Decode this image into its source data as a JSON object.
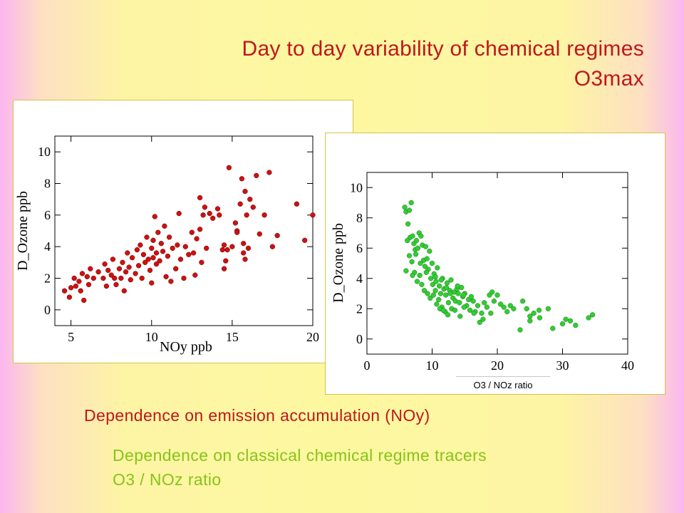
{
  "slide": {
    "title_line1": "Day to day variability of chemical regimes",
    "title_line2": "O3max",
    "caption_red": "Dependence on emission accumulation  (NOy)",
    "caption_green_line1": "Dependence on classical  chemical regime tracers",
    "caption_green_line2": "O3 / NOz ratio",
    "colors": {
      "red_text": "#c0161c",
      "green_text": "#86c41a",
      "red_points": "#d01010",
      "green_points": "#33cc33"
    }
  },
  "chart_data": [
    {
      "type": "scatter",
      "xlabel": "NOy   ppb",
      "ylabel": "D_Ozone  ppb",
      "xlim": [
        4,
        20
      ],
      "ylim": [
        -1,
        11
      ],
      "xticks": [
        5,
        10,
        15,
        20
      ],
      "yticks": [
        0,
        2,
        4,
        6,
        8,
        10
      ],
      "grid": false,
      "marker_color": "#d01010",
      "points": [
        [
          4.6,
          1.2
        ],
        [
          4.9,
          0.8
        ],
        [
          5.0,
          1.4
        ],
        [
          5.2,
          2.0
        ],
        [
          5.3,
          1.5
        ],
        [
          5.5,
          1.8
        ],
        [
          5.6,
          1.2
        ],
        [
          5.7,
          2.3
        ],
        [
          5.8,
          0.6
        ],
        [
          6.0,
          2.1
        ],
        [
          6.1,
          1.6
        ],
        [
          6.2,
          2.6
        ],
        [
          6.4,
          2.0
        ],
        [
          6.7,
          2.4
        ],
        [
          7.0,
          2.0
        ],
        [
          7.1,
          2.9
        ],
        [
          7.2,
          1.5
        ],
        [
          7.3,
          2.5
        ],
        [
          7.5,
          2.2
        ],
        [
          7.6,
          3.2
        ],
        [
          7.7,
          2.0
        ],
        [
          7.8,
          1.6
        ],
        [
          8.0,
          2.6
        ],
        [
          8.1,
          2.0
        ],
        [
          8.2,
          3.0
        ],
        [
          8.3,
          1.2
        ],
        [
          8.4,
          2.4
        ],
        [
          8.5,
          3.6
        ],
        [
          8.6,
          2.7
        ],
        [
          8.7,
          1.9
        ],
        [
          8.8,
          3.3
        ],
        [
          9.0,
          2.3
        ],
        [
          9.1,
          3.8
        ],
        [
          9.2,
          2.8
        ],
        [
          9.3,
          4.1
        ],
        [
          9.4,
          2.0
        ],
        [
          9.5,
          3.5
        ],
        [
          9.6,
          3.0
        ],
        [
          9.7,
          4.6
        ],
        [
          9.8,
          3.2
        ],
        [
          9.9,
          2.5
        ],
        [
          10.0,
          3.9
        ],
        [
          10.0,
          1.7
        ],
        [
          10.1,
          3.3
        ],
        [
          10.1,
          4.4
        ],
        [
          10.2,
          5.9
        ],
        [
          10.3,
          3.6
        ],
        [
          10.3,
          2.9
        ],
        [
          10.4,
          4.9
        ],
        [
          10.5,
          3.1
        ],
        [
          10.6,
          4.2
        ],
        [
          10.7,
          3.7
        ],
        [
          10.8,
          5.3
        ],
        [
          10.9,
          2.1
        ],
        [
          11.0,
          3.4
        ],
        [
          11.1,
          4.6
        ],
        [
          11.2,
          1.8
        ],
        [
          11.3,
          3.9
        ],
        [
          11.5,
          2.6
        ],
        [
          11.6,
          4.1
        ],
        [
          11.7,
          6.1
        ],
        [
          11.8,
          3.2
        ],
        [
          12.0,
          2.0
        ],
        [
          12.1,
          4.0
        ],
        [
          12.3,
          3.5
        ],
        [
          12.5,
          4.9
        ],
        [
          12.6,
          3.6
        ],
        [
          12.7,
          2.2
        ],
        [
          12.8,
          4.5
        ],
        [
          13.0,
          5.1
        ],
        [
          13.0,
          7.1
        ],
        [
          13.1,
          3.0
        ],
        [
          13.2,
          6.0
        ],
        [
          13.3,
          6.5
        ],
        [
          13.4,
          3.9
        ],
        [
          13.6,
          6.1
        ],
        [
          13.8,
          5.8
        ],
        [
          14.1,
          6.4
        ],
        [
          14.2,
          6.0
        ],
        [
          14.4,
          3.8
        ],
        [
          14.5,
          4.1
        ],
        [
          14.5,
          2.6
        ],
        [
          14.6,
          3.1
        ],
        [
          14.7,
          3.8
        ],
        [
          14.8,
          9.0
        ],
        [
          15.0,
          4.0
        ],
        [
          15.2,
          5.5
        ],
        [
          15.3,
          5.0
        ],
        [
          15.3,
          4.9
        ],
        [
          15.5,
          6.7
        ],
        [
          15.6,
          8.3
        ],
        [
          15.7,
          4.2
        ],
        [
          15.7,
          3.6
        ],
        [
          15.8,
          3.2
        ],
        [
          15.8,
          7.5
        ],
        [
          15.9,
          6.0
        ],
        [
          16.0,
          3.9
        ],
        [
          16.1,
          7.0
        ],
        [
          16.3,
          6.5
        ],
        [
          16.5,
          8.5
        ],
        [
          16.7,
          4.8
        ],
        [
          17.0,
          6.0
        ],
        [
          17.3,
          8.7
        ],
        [
          17.5,
          4.0
        ],
        [
          17.8,
          4.7
        ],
        [
          19.0,
          6.7
        ],
        [
          19.5,
          4.4
        ],
        [
          20.0,
          6.0
        ]
      ]
    },
    {
      "type": "scatter",
      "xlabel": "O3 / NOz ratio",
      "ylabel": "D_Ozone  ppb",
      "xlim": [
        0,
        40
      ],
      "ylim": [
        -1,
        11
      ],
      "xticks": [
        0,
        10,
        20,
        30,
        40
      ],
      "yticks": [
        0,
        2,
        4,
        6,
        8,
        10
      ],
      "grid": false,
      "marker_color": "#33cc33",
      "points": [
        [
          5.8,
          8.7
        ],
        [
          6.0,
          8.4
        ],
        [
          6.5,
          8.5
        ],
        [
          6.8,
          9.0
        ],
        [
          6.3,
          7.6
        ],
        [
          6.6,
          6.7
        ],
        [
          7.0,
          6.8
        ],
        [
          7.2,
          6.3
        ],
        [
          7.4,
          5.9
        ],
        [
          7.6,
          6.5
        ],
        [
          7.8,
          6.0
        ],
        [
          8.0,
          7.0
        ],
        [
          8.3,
          6.8
        ],
        [
          8.5,
          6.2
        ],
        [
          8.7,
          5.2
        ],
        [
          8.9,
          4.8
        ],
        [
          9.0,
          6.1
        ],
        [
          9.2,
          5.3
        ],
        [
          9.4,
          4.6
        ],
        [
          9.6,
          5.8
        ],
        [
          9.8,
          4.0
        ],
        [
          10.0,
          5.0
        ],
        [
          10.1,
          3.6
        ],
        [
          10.3,
          4.3
        ],
        [
          10.5,
          3.2
        ],
        [
          10.6,
          3.8
        ],
        [
          10.8,
          4.7
        ],
        [
          11.0,
          2.6
        ],
        [
          11.1,
          3.5
        ],
        [
          11.3,
          3.0
        ],
        [
          11.5,
          2.1
        ],
        [
          11.6,
          4.0
        ],
        [
          11.8,
          3.3
        ],
        [
          12.0,
          1.8
        ],
        [
          12.1,
          2.9
        ],
        [
          12.3,
          3.7
        ],
        [
          12.5,
          2.4
        ],
        [
          12.7,
          3.2
        ],
        [
          12.9,
          3.9
        ],
        [
          13.2,
          2.7
        ],
        [
          13.4,
          3.1
        ],
        [
          13.6,
          2.5
        ],
        [
          13.8,
          3.3
        ],
        [
          14.0,
          3.0
        ],
        [
          14.2,
          2.4
        ],
        [
          14.5,
          3.4
        ],
        [
          14.7,
          2.8
        ],
        [
          15.0,
          3.0
        ],
        [
          15.3,
          2.2
        ],
        [
          15.6,
          2.6
        ],
        [
          16.0,
          2.8
        ],
        [
          16.3,
          2.5
        ],
        [
          16.6,
          1.8
        ],
        [
          17.0,
          2.2
        ],
        [
          17.3,
          1.1
        ],
        [
          17.6,
          1.7
        ],
        [
          18.0,
          2.4
        ],
        [
          18.4,
          2.1
        ],
        [
          18.8,
          2.9
        ],
        [
          19.2,
          3.1
        ],
        [
          19.5,
          2.5
        ],
        [
          20.0,
          2.9
        ],
        [
          20.5,
          2.3
        ],
        [
          21.0,
          2.1
        ],
        [
          21.5,
          1.8
        ],
        [
          22.0,
          2.2
        ],
        [
          22.5,
          2.0
        ],
        [
          6.2,
          6.5
        ],
        [
          6.5,
          5.5
        ],
        [
          6.9,
          5.1
        ],
        [
          7.3,
          4.4
        ],
        [
          7.7,
          3.8
        ],
        [
          8.1,
          4.2
        ],
        [
          8.4,
          3.6
        ],
        [
          8.8,
          3.2
        ],
        [
          9.3,
          3.0
        ],
        [
          9.7,
          2.7
        ],
        [
          10.2,
          2.9
        ],
        [
          10.7,
          2.3
        ],
        [
          11.2,
          2.0
        ],
        [
          11.7,
          1.9
        ],
        [
          12.4,
          1.6
        ],
        [
          13.0,
          2.0
        ],
        [
          13.5,
          1.9
        ],
        [
          14.3,
          1.5
        ],
        [
          14.9,
          2.1
        ],
        [
          15.8,
          1.9
        ],
        [
          16.4,
          1.7
        ],
        [
          17.8,
          1.3
        ],
        [
          19.0,
          1.7
        ],
        [
          6.0,
          4.5
        ],
        [
          7.0,
          4.2
        ],
        [
          7.5,
          5.6
        ],
        [
          8.2,
          5.0
        ],
        [
          9.1,
          4.4
        ],
        [
          10.5,
          4.1
        ],
        [
          11.4,
          3.9
        ],
        [
          12.2,
          3.4
        ],
        [
          12.8,
          3.0
        ],
        [
          13.9,
          3.5
        ],
        [
          14.8,
          2.9
        ],
        [
          23.9,
          2.5
        ],
        [
          24.5,
          2.0
        ],
        [
          25.0,
          1.5
        ],
        [
          25.6,
          1.7
        ],
        [
          26.4,
          1.9
        ],
        [
          27.8,
          2.0
        ],
        [
          23.5,
          0.6
        ],
        [
          28.5,
          0.7
        ],
        [
          30.5,
          1.3
        ],
        [
          31.2,
          1.2
        ],
        [
          32.0,
          0.9
        ],
        [
          34.0,
          1.4
        ],
        [
          34.6,
          1.6
        ],
        [
          25.0,
          1.2
        ],
        [
          26.5,
          1.4
        ],
        [
          30.0,
          1.0
        ]
      ]
    }
  ]
}
